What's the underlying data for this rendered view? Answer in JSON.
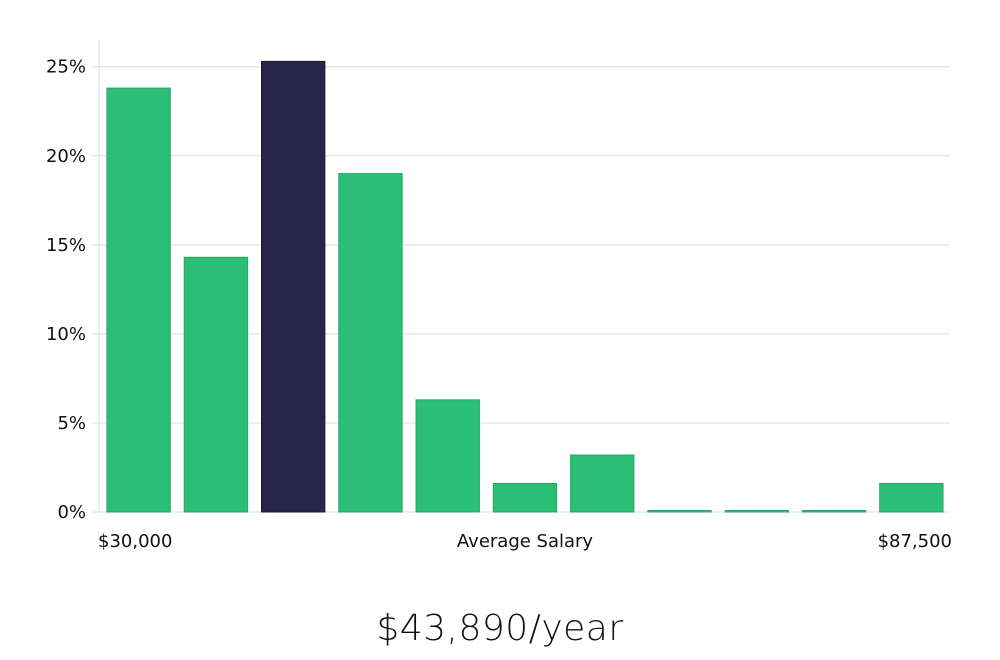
{
  "chart_data": {
    "type": "bar",
    "values": [
      23.8,
      14.3,
      25.3,
      19.0,
      6.3,
      1.6,
      3.2,
      0.0,
      0.0,
      0.0,
      1.6
    ],
    "highlight_index": 2,
    "y_ticks": [
      "0%",
      "5%",
      "10%",
      "15%",
      "20%",
      "25%"
    ],
    "ylim": [
      0,
      26.5
    ],
    "x_min_label": "$30,000",
    "x_max_label": "$87,500",
    "xlabel": "Average Salary",
    "grid": true
  },
  "colors": {
    "bar": "#2bbf76",
    "bar_stroke": "#22a865",
    "highlight": "#29254a",
    "grid": "#dcdcdc",
    "text": "#111111"
  },
  "caption": "$43,890/year"
}
